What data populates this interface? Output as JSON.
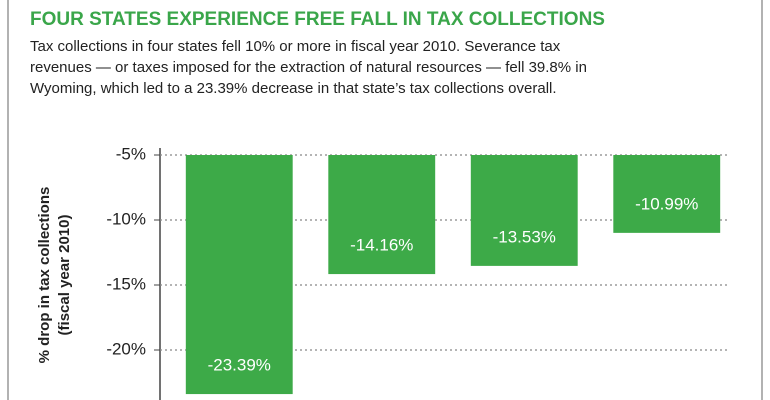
{
  "chart_data": {
    "type": "bar",
    "title": "FOUR STATES EXPERIENCE FREE FALL IN TAX COLLECTIONS",
    "subtitle": [
      "Tax collections in four states fell 10% or more in fiscal year 2010. Severance tax",
      "revenues — or taxes imposed for the extraction of natural resources — fell 39.8% in",
      "Wyoming, which led to a 23.39% decrease in that state’s tax collections overall."
    ],
    "ylabel": [
      "% drop in tax collections",
      "(fiscal year 2010)"
    ],
    "values": [
      -23.39,
      -14.16,
      -13.53,
      -10.99
    ],
    "value_labels": [
      "-23.39%",
      "-14.16%",
      "-13.53%",
      "-10.99%"
    ],
    "color": "#3daa48",
    "ylim": [
      -24,
      -5
    ],
    "yticks": [
      {
        "value": -5,
        "label": "-5%"
      },
      {
        "value": -10,
        "label": "-10%"
      },
      {
        "value": -15,
        "label": "-15%"
      },
      {
        "value": -20,
        "label": "-20%"
      }
    ],
    "grid": true
  }
}
